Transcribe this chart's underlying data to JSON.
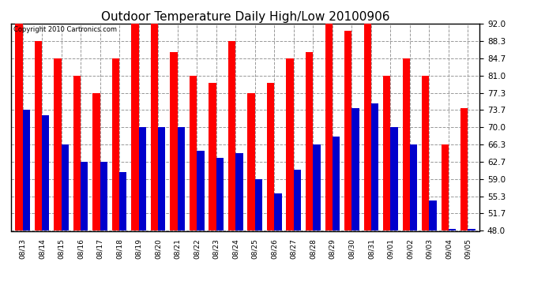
{
  "title": "Outdoor Temperature Daily High/Low 20100906",
  "copyright": "Copyright 2010 Cartronics.com",
  "dates": [
    "08/13",
    "08/14",
    "08/15",
    "08/16",
    "08/17",
    "08/18",
    "08/19",
    "08/20",
    "08/21",
    "08/22",
    "08/23",
    "08/24",
    "08/25",
    "08/26",
    "08/27",
    "08/28",
    "08/29",
    "08/30",
    "08/31",
    "09/01",
    "09/02",
    "09/03",
    "09/04",
    "09/05"
  ],
  "highs": [
    92.0,
    88.3,
    84.7,
    81.0,
    77.3,
    84.7,
    92.0,
    92.0,
    86.0,
    81.0,
    79.5,
    88.3,
    77.3,
    79.5,
    84.7,
    86.0,
    92.0,
    90.5,
    92.0,
    81.0,
    84.7,
    81.0,
    66.3,
    74.0
  ],
  "lows": [
    73.7,
    72.5,
    66.3,
    62.7,
    62.7,
    60.5,
    70.0,
    70.0,
    70.0,
    65.0,
    63.5,
    64.5,
    59.0,
    56.0,
    61.0,
    66.3,
    68.0,
    74.0,
    75.0,
    70.0,
    66.3,
    54.5,
    48.5,
    48.5
  ],
  "high_color": "#ff0000",
  "low_color": "#0000cc",
  "bg_color": "#ffffff",
  "yticks": [
    48.0,
    51.7,
    55.3,
    59.0,
    62.7,
    66.3,
    70.0,
    73.7,
    77.3,
    81.0,
    84.7,
    88.3,
    92.0
  ],
  "ylim": [
    48.0,
    92.0
  ],
  "grid_color": "#999999",
  "bar_width": 0.38,
  "title_fontsize": 11,
  "ybase": 48.0
}
